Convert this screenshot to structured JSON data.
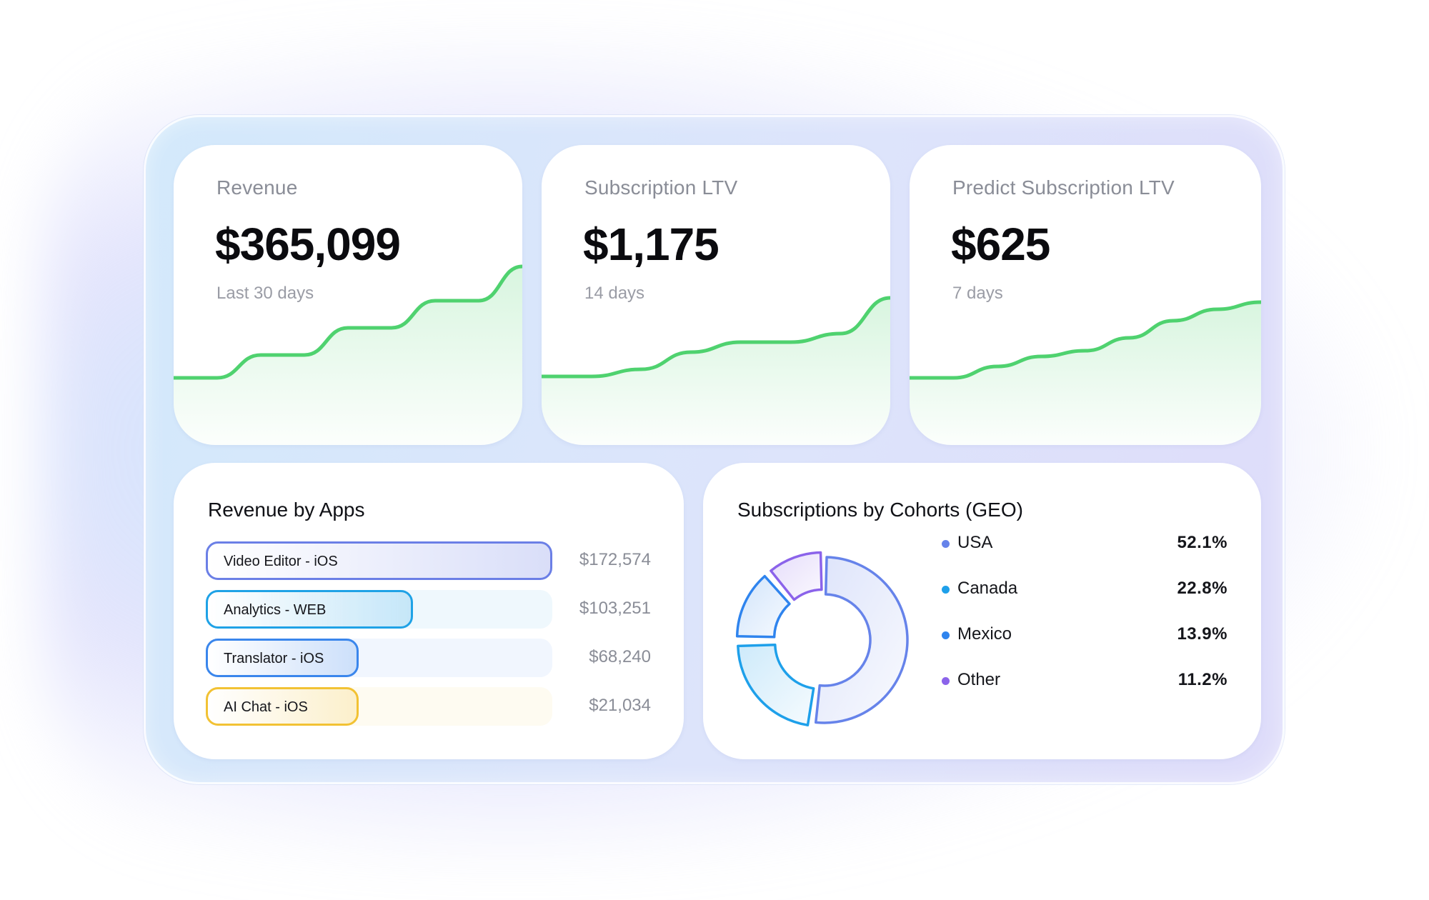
{
  "metrics": [
    {
      "label": "Revenue",
      "value": "$365,099",
      "period": "Last 30 days",
      "trend": [
        2,
        2,
        18,
        18,
        37,
        37,
        56,
        56,
        80
      ]
    },
    {
      "label": "Subscription LTV",
      "value": "$1,175",
      "period": "14 days",
      "trend": [
        3,
        3,
        8,
        20,
        27,
        27,
        33,
        58
      ]
    },
    {
      "label": "Predict Subscription LTV",
      "value": "$625",
      "period": "7 days",
      "trend": [
        2,
        2,
        10,
        17,
        21,
        30,
        42,
        50,
        55
      ]
    }
  ],
  "revenue_by_apps": {
    "title": "Revenue by Apps",
    "items": [
      {
        "name": "Video Editor - iOS",
        "value": "$172,574",
        "amount": 172574,
        "color": "#6b7fe6"
      },
      {
        "name": "Analytics - WEB",
        "value": "$103,251",
        "amount": 103251,
        "color": "#1fa2e6"
      },
      {
        "name": "Translator - iOS",
        "value": "$68,240",
        "amount": 68240,
        "color": "#3a86ec"
      },
      {
        "name": "AI Chat - iOS",
        "value": "$21,034",
        "amount": 21034,
        "color": "#f2c234"
      }
    ]
  },
  "cohorts": {
    "title": "Subscriptions by Cohorts (GEO)",
    "items": [
      {
        "name": "USA",
        "pct": "52.1%",
        "share": 52.1,
        "color": "#6683ea"
      },
      {
        "name": "Canada",
        "pct": "22.8%",
        "share": 22.8,
        "color": "#1ea0ea"
      },
      {
        "name": "Mexico",
        "pct": "13.9%",
        "share": 13.9,
        "color": "#2f84ee"
      },
      {
        "name": "Other",
        "pct": "11.2%",
        "share": 11.2,
        "color": "#8b63ea"
      }
    ]
  },
  "colors": {
    "accent_green": "#4fd26f",
    "label_gray": "#8a8d97"
  }
}
